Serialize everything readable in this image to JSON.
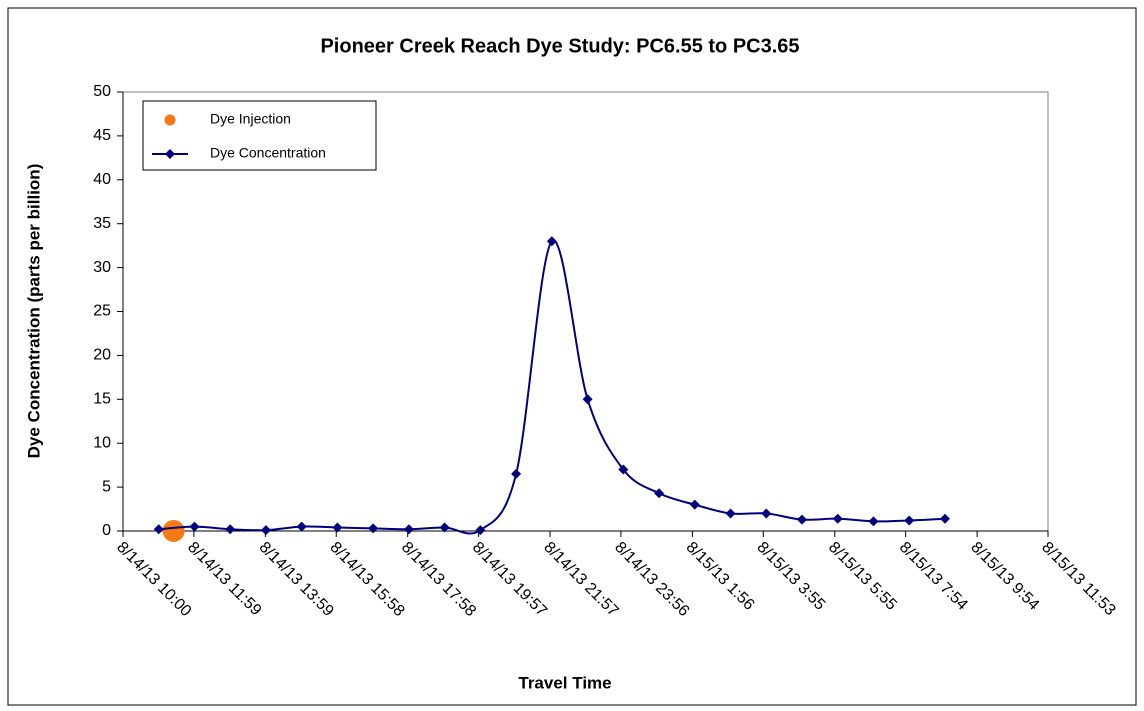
{
  "chart_data": {
    "type": "line",
    "title": "Pioneer Creek Reach Dye Study: PC6.55 to PC3.65",
    "x_label": "Travel Time",
    "y_label": "Dye Concentration (parts per billion)",
    "xlim": [
      "2013-08-14T10:00",
      "2013-08-15T11:53"
    ],
    "xticks": [
      {
        "value": "2013-08-14T10:00",
        "label": "8/14/13 10:00"
      },
      {
        "value": "2013-08-14T11:59",
        "label": "8/14/13 11:59"
      },
      {
        "value": "2013-08-14T13:59",
        "label": "8/14/13 13:59"
      },
      {
        "value": "2013-08-14T15:58",
        "label": "8/14/13 15:58"
      },
      {
        "value": "2013-08-14T17:58",
        "label": "8/14/13 17:58"
      },
      {
        "value": "2013-08-14T19:57",
        "label": "8/14/13 19:57"
      },
      {
        "value": "2013-08-14T21:57",
        "label": "8/14/13 21:57"
      },
      {
        "value": "2013-08-14T23:56",
        "label": "8/14/13 23:56"
      },
      {
        "value": "2013-08-15T01:56",
        "label": "8/15/13 1:56"
      },
      {
        "value": "2013-08-15T03:55",
        "label": "8/15/13 3:55"
      },
      {
        "value": "2013-08-15T05:55",
        "label": "8/15/13 5:55"
      },
      {
        "value": "2013-08-15T07:54",
        "label": "8/15/13 7:54"
      },
      {
        "value": "2013-08-15T09:54",
        "label": "8/15/13 9:54"
      },
      {
        "value": "2013-08-15T11:53",
        "label": "8/15/13 11:53"
      }
    ],
    "ylim": [
      0,
      50
    ],
    "yticks": [
      0,
      5,
      10,
      15,
      20,
      25,
      30,
      35,
      40,
      45,
      50
    ],
    "grid": false,
    "legend": "top-left",
    "series": [
      {
        "name": "Dye Injection",
        "color": "#f47a16",
        "marker": "circle",
        "line": false,
        "x": [
          "2013-08-14T11:25"
        ],
        "values": [
          0
        ]
      },
      {
        "name": "Dye Concentration",
        "color": "#00007f",
        "marker": "diamond",
        "line": true,
        "x": [
          "2013-08-14T11:00",
          "2013-08-14T12:00",
          "2013-08-14T13:00",
          "2013-08-14T14:00",
          "2013-08-14T15:00",
          "2013-08-14T16:00",
          "2013-08-14T17:00",
          "2013-08-14T18:00",
          "2013-08-14T19:00",
          "2013-08-14T20:00",
          "2013-08-14T21:00",
          "2013-08-14T22:00",
          "2013-08-14T23:00",
          "2013-08-15T00:00",
          "2013-08-15T01:00",
          "2013-08-15T02:00",
          "2013-08-15T03:00",
          "2013-08-15T04:00",
          "2013-08-15T05:00",
          "2013-08-15T06:00",
          "2013-08-15T07:00",
          "2013-08-15T08:00",
          "2013-08-15T09:00"
        ],
        "values": [
          0.2,
          0.5,
          0.2,
          0.1,
          0.5,
          0.4,
          0.3,
          0.2,
          0.4,
          0.1,
          6.5,
          33,
          15,
          7,
          4.3,
          3,
          2,
          2,
          1.3,
          1.4,
          1.1,
          1.2,
          1.4
        ]
      }
    ]
  }
}
